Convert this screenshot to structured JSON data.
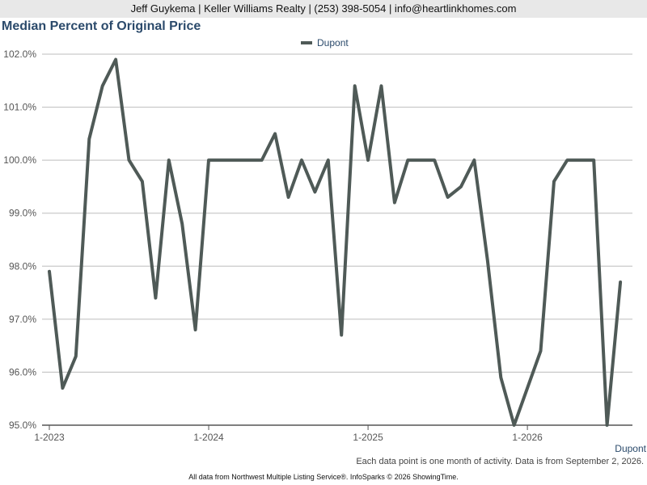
{
  "header": {
    "text": "Jeff Guykema | Keller Williams Realty | (253) 398-5054 | info@heartlinkhomes.com"
  },
  "colors": {
    "line": "#4f5a57",
    "title": "#2b4a6b"
  },
  "chart_data": {
    "type": "line",
    "title": "Median Percent of Original Price",
    "series": [
      {
        "name": "Dupont",
        "x": [
          "2023-01",
          "2023-02",
          "2023-03",
          "2023-04",
          "2023-05",
          "2023-06",
          "2023-07",
          "2023-08",
          "2023-09",
          "2023-10",
          "2023-11",
          "2023-12",
          "2024-01",
          "2024-02",
          "2024-03",
          "2024-04",
          "2024-05",
          "2024-06",
          "2024-07",
          "2024-08",
          "2024-09",
          "2024-10",
          "2024-11",
          "2024-12",
          "2025-01",
          "2025-02",
          "2025-03",
          "2025-04",
          "2025-05",
          "2025-06",
          "2025-07",
          "2025-08",
          "2025-09",
          "2025-10",
          "2025-11",
          "2025-12",
          "2026-01",
          "2026-02",
          "2026-03",
          "2026-04",
          "2026-05",
          "2026-06",
          "2026-07",
          "2026-08"
        ],
        "values": [
          97.9,
          95.7,
          96.3,
          100.4,
          101.4,
          101.9,
          100.0,
          99.6,
          97.4,
          100.0,
          98.8,
          96.8,
          100.0,
          100.0,
          100.0,
          100.0,
          100.0,
          100.5,
          99.3,
          100.0,
          99.4,
          100.0,
          96.7,
          101.4,
          100.0,
          101.4,
          99.2,
          100.0,
          100.0,
          100.0,
          99.3,
          99.5,
          100.0,
          98.1,
          95.9,
          95.0,
          95.7,
          96.4,
          99.6,
          100.0,
          100.0,
          100.0,
          95.0,
          97.7
        ]
      }
    ],
    "x_tick_labels": [
      "1-2023",
      "1-2024",
      "1-2025",
      "1-2026"
    ],
    "y_tick_labels": [
      "102.0%",
      "101.0%",
      "100.0%",
      "99.0%",
      "98.0%",
      "97.0%",
      "96.0%",
      "95.0%"
    ],
    "ylim": [
      95.0,
      102.0
    ],
    "grid": true,
    "legend": "top-center"
  },
  "series_label": "Dupont",
  "note": "Each data point is one month of activity. Data is from September 2, 2026.",
  "footer": "All data from Northwest Multiple Listing Service®. InfoSparks © 2026 ShowingTime."
}
